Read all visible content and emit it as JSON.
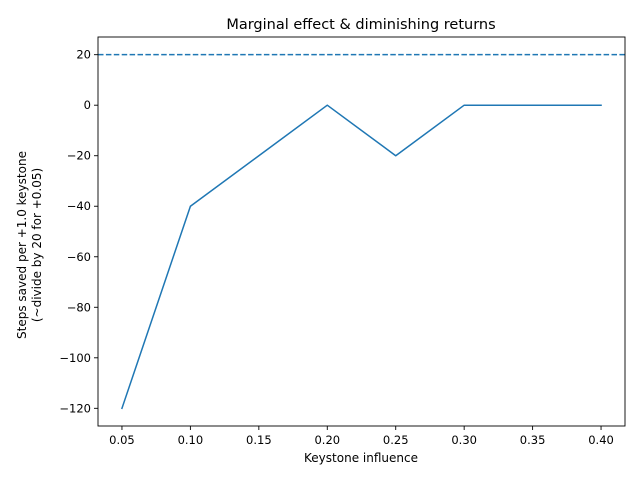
{
  "chart_data": {
    "type": "line",
    "title": "Marginal effect & diminishing returns",
    "xlabel": "Keystone influence",
    "ylabel_lines": [
      "Steps saved per +1.0 keystone",
      "(~divide by 20 for +0.05)"
    ],
    "x": [
      0.05,
      0.1,
      0.15,
      0.2,
      0.25,
      0.3,
      0.35,
      0.4
    ],
    "series": [
      {
        "values": [
          -120,
          -40,
          -20,
          0,
          -20,
          0,
          0,
          0
        ],
        "color": "#1f77b4",
        "linestyle": "solid"
      }
    ],
    "reference_line": {
      "y": 20,
      "color": "#1f77b4",
      "linestyle": "dashed"
    },
    "xlim": [
      0.0325,
      0.4175
    ],
    "ylim": [
      -127,
      27
    ],
    "xticks": [
      0.05,
      0.1,
      0.15,
      0.2,
      0.25,
      0.3,
      0.35,
      0.4
    ],
    "xtick_labels": [
      "0.05",
      "0.10",
      "0.15",
      "0.20",
      "0.25",
      "0.30",
      "0.35",
      "0.40"
    ],
    "yticks": [
      -120,
      -100,
      -80,
      -60,
      -40,
      -20,
      0,
      20
    ],
    "ytick_labels": [
      "−120",
      "−100",
      "−80",
      "−60",
      "−40",
      "−20",
      "0",
      "20"
    ],
    "grid": false,
    "legend": "none"
  }
}
